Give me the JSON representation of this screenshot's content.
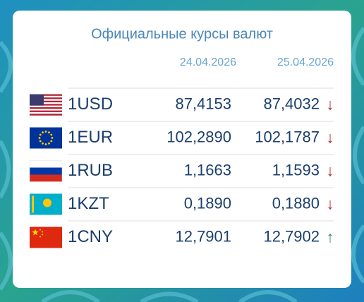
{
  "widget": {
    "title": "Официальные курсы валют",
    "dates": [
      "24.04.2026",
      "25.04.2026"
    ],
    "rows": [
      {
        "code": "1USD",
        "rate1": "87,4153",
        "rate2": "87,4032",
        "trend": "↓",
        "trend_color": "#b3262b"
      },
      {
        "code": "1EUR",
        "rate1": "102,2890",
        "rate2": "102,1787",
        "trend": "↓",
        "trend_color": "#b3262b"
      },
      {
        "code": "1RUB",
        "rate1": "1,1663",
        "rate2": "1,1593",
        "trend": "↓",
        "trend_color": "#b3262b"
      },
      {
        "code": "1KZT",
        "rate1": "0,1890",
        "rate2": "0,1880",
        "trend": "↓",
        "trend_color": "#b3262b"
      },
      {
        "code": "1CNY",
        "rate1": "12,7901",
        "rate2": "12,7902",
        "trend": "↑",
        "trend_color": "#2e8b57"
      }
    ]
  }
}
